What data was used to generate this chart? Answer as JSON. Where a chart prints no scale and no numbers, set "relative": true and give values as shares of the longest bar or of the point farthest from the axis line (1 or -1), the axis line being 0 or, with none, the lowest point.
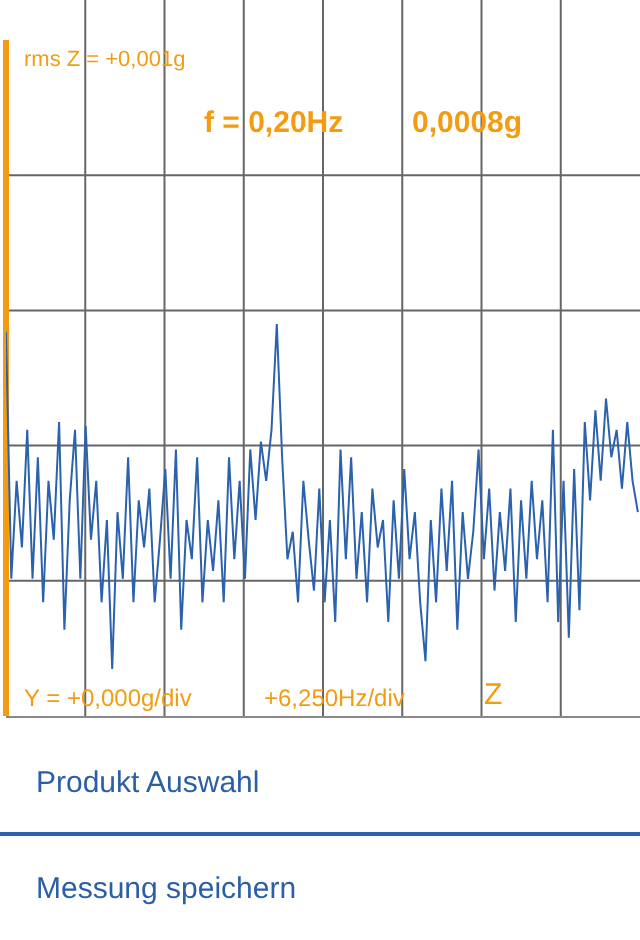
{
  "chart_data": {
    "type": "line",
    "relative": true,
    "color": "#2b62ad",
    "grid": true,
    "categories": [
      null,
      null,
      null,
      null,
      null,
      null,
      null,
      null,
      null,
      null,
      null,
      null,
      null,
      null,
      null,
      null,
      null,
      null,
      null,
      null,
      null,
      null,
      null,
      null,
      null,
      null,
      null,
      null,
      null,
      null,
      null,
      null,
      null,
      null,
      null,
      null,
      null,
      null,
      null,
      null,
      null,
      null,
      null,
      null,
      null,
      null,
      null,
      null,
      null,
      null,
      null,
      null,
      null,
      null,
      null,
      null,
      null,
      null,
      null,
      null,
      null,
      null,
      null,
      null,
      null,
      null,
      null,
      null,
      null,
      null,
      null,
      null,
      null,
      null,
      null,
      null,
      null,
      null,
      null,
      null,
      null,
      null,
      null,
      null,
      null,
      null,
      null,
      null,
      null,
      null,
      null,
      null,
      null,
      null,
      null,
      null,
      null,
      null,
      null,
      null,
      null,
      null,
      null,
      null,
      null,
      null,
      null,
      null,
      null,
      null,
      null,
      null,
      null,
      null,
      null,
      null,
      null,
      null,
      null,
      null
    ],
    "values": [
      0.98,
      0.35,
      0.6,
      0.43,
      0.73,
      0.35,
      0.66,
      0.29,
      0.6,
      0.45,
      0.75,
      0.22,
      0.55,
      0.73,
      0.35,
      0.74,
      0.45,
      0.6,
      0.29,
      0.5,
      0.12,
      0.52,
      0.35,
      0.66,
      0.29,
      0.55,
      0.43,
      0.58,
      0.29,
      0.45,
      0.63,
      0.35,
      0.68,
      0.22,
      0.5,
      0.4,
      0.66,
      0.29,
      0.5,
      0.37,
      0.55,
      0.29,
      0.66,
      0.4,
      0.6,
      0.35,
      0.68,
      0.5,
      0.7,
      0.6,
      0.73,
      1.0,
      0.66,
      0.4,
      0.47,
      0.29,
      0.6,
      0.45,
      0.32,
      0.58,
      0.29,
      0.5,
      0.24,
      0.68,
      0.4,
      0.66,
      0.35,
      0.52,
      0.29,
      0.58,
      0.43,
      0.5,
      0.24,
      0.55,
      0.35,
      0.63,
      0.4,
      0.52,
      0.29,
      0.14,
      0.5,
      0.29,
      0.58,
      0.37,
      0.6,
      0.22,
      0.52,
      0.35,
      0.47,
      0.68,
      0.4,
      0.58,
      0.32,
      0.52,
      0.37,
      0.58,
      0.24,
      0.55,
      0.35,
      0.6,
      0.4,
      0.55,
      0.29,
      0.73,
      0.24,
      0.6,
      0.2,
      0.63,
      0.27,
      0.75,
      0.55,
      0.78,
      0.6,
      0.81,
      0.66,
      0.73,
      0.58,
      0.75,
      0.6,
      0.52
    ],
    "annotations": [
      "rms Z = +0,001g",
      "f = 0,20Hz",
      "0,0008g",
      "Y = +0,000g/div",
      "+6,250Hz/div",
      "Z",
      "Produkt Auswahl",
      "Messung speichern"
    ]
  }
}
